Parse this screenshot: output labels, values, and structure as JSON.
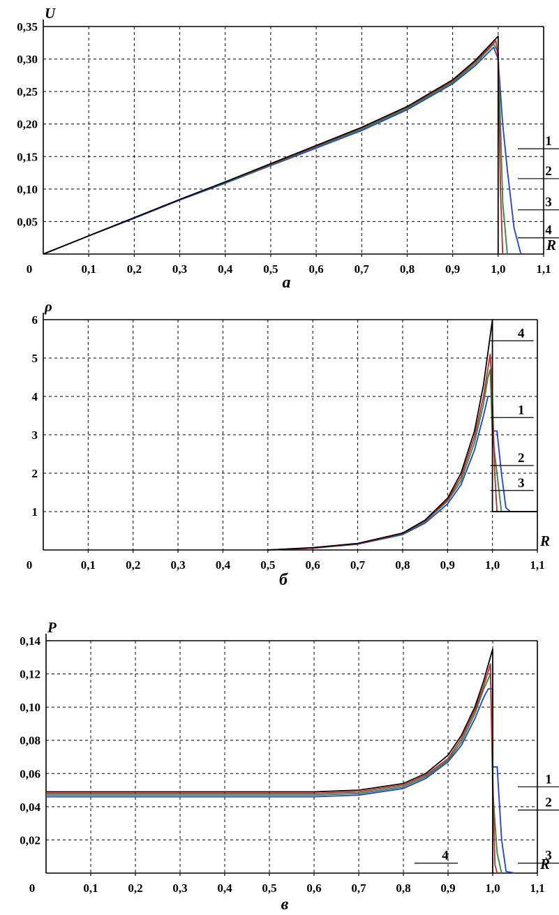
{
  "chart_data": [
    {
      "type": "line",
      "panel_label": "а",
      "xlabel": "R",
      "ylabel": "U",
      "xlim": [
        0,
        1.1
      ],
      "ylim": [
        0,
        0.35
      ],
      "xticks": [
        "0",
        "0,1",
        "0,2",
        "0,3",
        "0,4",
        "0,5",
        "0,6",
        "0,7",
        "0,8",
        "0,9",
        "1,0",
        "1,1"
      ],
      "yticks": [
        "0,05",
        "0,10",
        "0,15",
        "0,20",
        "0,25",
        "0,30",
        "0,35"
      ],
      "grid": true,
      "series": [
        {
          "name": "1",
          "color": "#1f3fd6",
          "x": [
            0,
            0.1,
            0.2,
            0.3,
            0.4,
            0.5,
            0.6,
            0.7,
            0.8,
            0.9,
            0.95,
            0.99,
            1.0,
            1.01,
            1.02,
            1.035,
            1.05
          ],
          "y": [
            0,
            0.028,
            0.055,
            0.083,
            0.109,
            0.136,
            0.163,
            0.19,
            0.222,
            0.262,
            0.29,
            0.318,
            0.3,
            0.2,
            0.13,
            0.04,
            0
          ]
        },
        {
          "name": "2",
          "color": "#2a8a3a",
          "x": [
            0,
            0.1,
            0.2,
            0.3,
            0.4,
            0.5,
            0.6,
            0.7,
            0.8,
            0.9,
            0.95,
            0.99,
            1.0,
            1.005,
            1.01,
            1.02
          ],
          "y": [
            0,
            0.028,
            0.056,
            0.084,
            0.11,
            0.137,
            0.165,
            0.192,
            0.224,
            0.264,
            0.293,
            0.323,
            0.31,
            0.2,
            0.08,
            0
          ]
        },
        {
          "name": "3",
          "color": "#c0282b",
          "x": [
            0,
            0.1,
            0.2,
            0.3,
            0.4,
            0.5,
            0.6,
            0.7,
            0.8,
            0.9,
            0.95,
            0.995,
            1.0,
            1.005,
            1.01
          ],
          "y": [
            0,
            0.028,
            0.056,
            0.084,
            0.111,
            0.138,
            0.166,
            0.194,
            0.226,
            0.266,
            0.296,
            0.328,
            0.3,
            0.1,
            0
          ]
        },
        {
          "name": "4",
          "color": "#000000",
          "x": [
            0,
            0.1,
            0.2,
            0.3,
            0.4,
            0.5,
            0.6,
            0.7,
            0.8,
            0.9,
            0.95,
            1.0,
            1.0
          ],
          "y": [
            0,
            0.028,
            0.056,
            0.084,
            0.111,
            0.139,
            0.167,
            0.195,
            0.227,
            0.268,
            0.298,
            0.335,
            0
          ]
        }
      ],
      "curve_labels": [
        {
          "text": "1",
          "x": 1.14,
          "y": 0.162
        },
        {
          "text": "2",
          "x": 1.14,
          "y": 0.116
        },
        {
          "text": "3",
          "x": 1.14,
          "y": 0.068
        },
        {
          "text": "4",
          "x": 1.14,
          "y": 0.025
        }
      ]
    },
    {
      "type": "line",
      "panel_label": "б",
      "xlabel": "R",
      "ylabel": "ρ",
      "xlim": [
        0,
        1.1
      ],
      "ylim": [
        0,
        6
      ],
      "xticks": [
        "0",
        "0,1",
        "0,2",
        "0,3",
        "0,4",
        "0,5",
        "0,6",
        "0,7",
        "0,8",
        "0,9",
        "1,0",
        "1,1"
      ],
      "yticks": [
        "1",
        "2",
        "3",
        "4",
        "5",
        "6"
      ],
      "grid": true,
      "series": [
        {
          "name": "1",
          "color": "#1f3fd6",
          "x": [
            0.5,
            0.6,
            0.7,
            0.8,
            0.85,
            0.9,
            0.93,
            0.96,
            0.98,
            0.99,
            1.0,
            1.0,
            1.01,
            1.02,
            1.03,
            1.04,
            1.1
          ],
          "y": [
            0,
            0.05,
            0.15,
            0.4,
            0.7,
            1.2,
            1.7,
            2.6,
            3.5,
            4.0,
            4.0,
            3.1,
            3.1,
            2.0,
            1.1,
            1.0,
            1.0
          ]
        },
        {
          "name": "2",
          "color": "#2a8a3a",
          "x": [
            0.5,
            0.6,
            0.7,
            0.8,
            0.85,
            0.9,
            0.93,
            0.96,
            0.98,
            0.99,
            0.995,
            1.0,
            1.01,
            1.02,
            1.1
          ],
          "y": [
            0,
            0.05,
            0.16,
            0.42,
            0.74,
            1.27,
            1.8,
            2.8,
            3.8,
            4.5,
            4.7,
            3.0,
            2.0,
            1.0,
            1.0
          ]
        },
        {
          "name": "3",
          "color": "#c0282b",
          "x": [
            0.5,
            0.6,
            0.7,
            0.8,
            0.85,
            0.9,
            0.93,
            0.96,
            0.98,
            0.995,
            1.0,
            1.005,
            1.01,
            1.1
          ],
          "y": [
            0,
            0.05,
            0.16,
            0.43,
            0.76,
            1.3,
            1.9,
            2.95,
            4.0,
            5.1,
            4.0,
            2.0,
            1.0,
            1.0
          ]
        },
        {
          "name": "4",
          "color": "#000000",
          "x": [
            0.5,
            0.6,
            0.7,
            0.8,
            0.85,
            0.9,
            0.93,
            0.96,
            0.98,
            1.0,
            1.0,
            1.1
          ],
          "y": [
            0,
            0.06,
            0.17,
            0.44,
            0.78,
            1.35,
            2.0,
            3.1,
            4.3,
            6.0,
            1.0,
            1.0
          ]
        }
      ],
      "curve_labels": [
        {
          "text": "4",
          "x": 1.07,
          "y": 5.45
        },
        {
          "text": "1",
          "x": 1.07,
          "y": 3.45
        },
        {
          "text": "2",
          "x": 1.07,
          "y": 2.2
        },
        {
          "text": "3",
          "x": 1.07,
          "y": 1.55
        }
      ]
    },
    {
      "type": "line",
      "panel_label": "в",
      "xlabel": "R",
      "ylabel": "P",
      "xlim": [
        0,
        1.1
      ],
      "ylim": [
        0,
        0.14
      ],
      "xticks": [
        "0",
        "0,1",
        "0,2",
        "0,3",
        "0,4",
        "0,5",
        "0,6",
        "0,7",
        "0,8",
        "0,9",
        "1,0",
        "1,1"
      ],
      "yticks": [
        "0,02",
        "0,04",
        "0,06",
        "0,08",
        "0,10",
        "0,12",
        "0,14"
      ],
      "grid": true,
      "series": [
        {
          "name": "1",
          "color": "#1f3fd6",
          "x": [
            0,
            0.6,
            0.7,
            0.8,
            0.85,
            0.9,
            0.93,
            0.96,
            0.98,
            0.99,
            1.0,
            1.0,
            1.01,
            1.02,
            1.03,
            1.05
          ],
          "y": [
            0.046,
            0.046,
            0.047,
            0.051,
            0.057,
            0.067,
            0.077,
            0.093,
            0.106,
            0.111,
            0.111,
            0.064,
            0.064,
            0.02,
            0.001,
            0.0
          ]
        },
        {
          "name": "2",
          "color": "#2a8a3a",
          "x": [
            0,
            0.6,
            0.7,
            0.8,
            0.85,
            0.9,
            0.93,
            0.96,
            0.98,
            0.995,
            1.0,
            1.01,
            1.02
          ],
          "y": [
            0.047,
            0.047,
            0.048,
            0.052,
            0.058,
            0.068,
            0.079,
            0.096,
            0.111,
            0.12,
            0.05,
            0.012,
            0.0
          ]
        },
        {
          "name": "3",
          "color": "#c0282b",
          "x": [
            0,
            0.6,
            0.7,
            0.8,
            0.85,
            0.9,
            0.93,
            0.96,
            0.98,
            0.995,
            1.0,
            1.005,
            1.01
          ],
          "y": [
            0.048,
            0.048,
            0.049,
            0.053,
            0.059,
            0.069,
            0.081,
            0.098,
            0.113,
            0.126,
            0.06,
            0.005,
            0.0
          ]
        },
        {
          "name": "4",
          "color": "#000000",
          "x": [
            0,
            0.6,
            0.7,
            0.8,
            0.85,
            0.9,
            0.93,
            0.96,
            0.98,
            1.0,
            1.0
          ],
          "y": [
            0.049,
            0.049,
            0.05,
            0.054,
            0.06,
            0.071,
            0.083,
            0.1,
            0.116,
            0.135,
            0.0
          ]
        }
      ],
      "curve_labels": [
        {
          "text": "1",
          "x": 1.14,
          "y": 0.052
        },
        {
          "text": "2",
          "x": 1.14,
          "y": 0.038
        },
        {
          "text": "3",
          "x": 1.14,
          "y": 0.006
        },
        {
          "text": "4",
          "x": 0.9,
          "y": 0.006
        }
      ]
    }
  ]
}
